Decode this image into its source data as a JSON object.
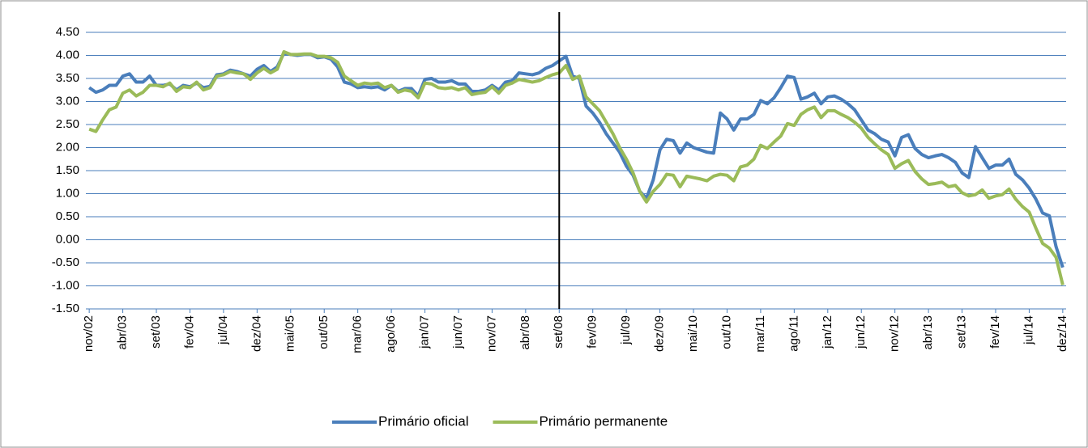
{
  "chart_data": {
    "type": "line",
    "categories": [
      "nov/02",
      null,
      null,
      null,
      null,
      "abr/03",
      null,
      null,
      null,
      null,
      "set/03",
      null,
      null,
      null,
      null,
      "fev/04",
      null,
      null,
      null,
      null,
      "jul/04",
      null,
      null,
      null,
      null,
      "dez/04",
      null,
      null,
      null,
      null,
      "mai/05",
      null,
      null,
      null,
      null,
      "out/05",
      null,
      null,
      null,
      null,
      "mar/06",
      null,
      null,
      null,
      null,
      "ago/06",
      null,
      null,
      null,
      null,
      "jan/07",
      null,
      null,
      null,
      null,
      "jun/07",
      null,
      null,
      null,
      null,
      "nov/07",
      null,
      null,
      null,
      null,
      "abr/08",
      null,
      null,
      null,
      null,
      "set/08",
      null,
      null,
      null,
      null,
      "fev/09",
      null,
      null,
      null,
      null,
      "jul/09",
      null,
      null,
      null,
      null,
      "dez/09",
      null,
      null,
      null,
      null,
      "mai/10",
      null,
      null,
      null,
      null,
      "out/10",
      null,
      null,
      null,
      null,
      "mar/11",
      null,
      null,
      null,
      null,
      "ago/11",
      null,
      null,
      null,
      null,
      "jan/12",
      null,
      null,
      null,
      null,
      "jun/12",
      null,
      null,
      null,
      null,
      "nov/12",
      null,
      null,
      null,
      null,
      "abr/13",
      null,
      null,
      null,
      null,
      "set/13",
      null,
      null,
      null,
      null,
      "fev/14",
      null,
      null,
      null,
      null,
      "jul/14",
      null,
      null,
      null,
      null,
      "dez/14"
    ],
    "series": [
      {
        "name": "Primário oficial",
        "color": "#4a7ebb",
        "values": [
          3.3,
          3.2,
          3.25,
          3.35,
          3.35,
          3.55,
          3.6,
          3.42,
          3.42,
          3.55,
          3.35,
          3.35,
          3.38,
          3.25,
          3.35,
          3.32,
          3.4,
          3.3,
          3.33,
          3.58,
          3.6,
          3.68,
          3.65,
          3.6,
          3.55,
          3.7,
          3.78,
          3.65,
          3.75,
          4.05,
          4.02,
          4.0,
          4.02,
          4.02,
          3.95,
          3.97,
          3.92,
          3.75,
          3.42,
          3.38,
          3.3,
          3.32,
          3.3,
          3.32,
          3.25,
          3.35,
          3.22,
          3.28,
          3.28,
          3.12,
          3.48,
          3.5,
          3.42,
          3.42,
          3.45,
          3.38,
          3.38,
          3.22,
          3.22,
          3.25,
          3.35,
          3.25,
          3.42,
          3.45,
          3.62,
          3.6,
          3.58,
          3.62,
          3.72,
          3.78,
          3.88,
          3.98,
          3.55,
          3.5,
          2.9,
          2.75,
          2.55,
          2.3,
          2.1,
          1.9,
          1.6,
          1.4,
          1.05,
          0.9,
          1.3,
          1.95,
          2.18,
          2.15,
          1.88,
          2.1,
          2.0,
          1.95,
          1.9,
          1.88,
          2.75,
          2.62,
          2.38,
          2.62,
          2.62,
          2.72,
          3.02,
          2.95,
          3.08,
          3.3,
          3.55,
          3.52,
          3.05,
          3.1,
          3.18,
          2.95,
          3.1,
          3.12,
          3.05,
          2.95,
          2.82,
          2.6,
          2.38,
          2.3,
          2.18,
          2.12,
          1.82,
          2.22,
          2.28,
          1.98,
          1.85,
          1.78,
          1.82,
          1.85,
          1.78,
          1.68,
          1.45,
          1.35,
          2.02,
          1.78,
          1.55,
          1.62,
          1.62,
          1.75,
          1.42,
          1.3,
          1.12,
          0.88,
          0.58,
          0.52,
          -0.15,
          -0.6
        ]
      },
      {
        "name": "Primário permanente",
        "color": "#9bbb59",
        "values": [
          2.4,
          2.35,
          2.6,
          2.82,
          2.88,
          3.18,
          3.25,
          3.12,
          3.2,
          3.35,
          3.35,
          3.32,
          3.4,
          3.22,
          3.32,
          3.3,
          3.42,
          3.25,
          3.3,
          3.55,
          3.58,
          3.65,
          3.62,
          3.6,
          3.48,
          3.62,
          3.72,
          3.62,
          3.7,
          4.08,
          4.02,
          4.02,
          4.03,
          4.03,
          3.98,
          3.98,
          3.95,
          3.85,
          3.55,
          3.45,
          3.35,
          3.4,
          3.38,
          3.4,
          3.3,
          3.35,
          3.2,
          3.25,
          3.22,
          3.08,
          3.4,
          3.38,
          3.3,
          3.28,
          3.3,
          3.25,
          3.3,
          3.15,
          3.18,
          3.2,
          3.32,
          3.18,
          3.35,
          3.4,
          3.48,
          3.45,
          3.42,
          3.45,
          3.52,
          3.58,
          3.62,
          3.78,
          3.48,
          3.55,
          3.1,
          2.95,
          2.8,
          2.55,
          2.3,
          2.0,
          1.75,
          1.45,
          1.05,
          0.82,
          1.05,
          1.2,
          1.42,
          1.4,
          1.15,
          1.38,
          1.35,
          1.32,
          1.28,
          1.38,
          1.42,
          1.4,
          1.28,
          1.58,
          1.62,
          1.75,
          2.05,
          1.98,
          2.12,
          2.25,
          2.52,
          2.48,
          2.72,
          2.82,
          2.88,
          2.65,
          2.8,
          2.8,
          2.72,
          2.65,
          2.55,
          2.42,
          2.22,
          2.08,
          1.95,
          1.85,
          1.55,
          1.65,
          1.72,
          1.48,
          1.32,
          1.2,
          1.22,
          1.25,
          1.15,
          1.18,
          1.02,
          0.95,
          0.98,
          1.08,
          0.9,
          0.95,
          0.98,
          1.1,
          0.88,
          0.72,
          0.6,
          0.25,
          -0.08,
          -0.18,
          -0.38,
          -0.98
        ]
      }
    ],
    "ylim": [
      -1.5,
      4.5
    ],
    "yticks": [
      {
        "value": -1.5,
        "label": "-1.50"
      },
      {
        "value": -1,
        "label": "-1.00"
      },
      {
        "value": -0.5,
        "label": "-0.50"
      },
      {
        "value": 0,
        "label": "0.00"
      },
      {
        "value": 0.5,
        "label": "0.50"
      },
      {
        "value": 1,
        "label": "1.00"
      },
      {
        "value": 1.5,
        "label": "1.50"
      },
      {
        "value": 2,
        "label": "2.00"
      },
      {
        "value": 2.5,
        "label": "2.50"
      },
      {
        "value": 3,
        "label": "3.00"
      },
      {
        "value": 3.5,
        "label": "3.50"
      },
      {
        "value": 4,
        "label": "4.00"
      },
      {
        "value": 4.5,
        "label": "4.50"
      }
    ],
    "grid": true,
    "vline_index": 70,
    "legend": "bottom"
  }
}
